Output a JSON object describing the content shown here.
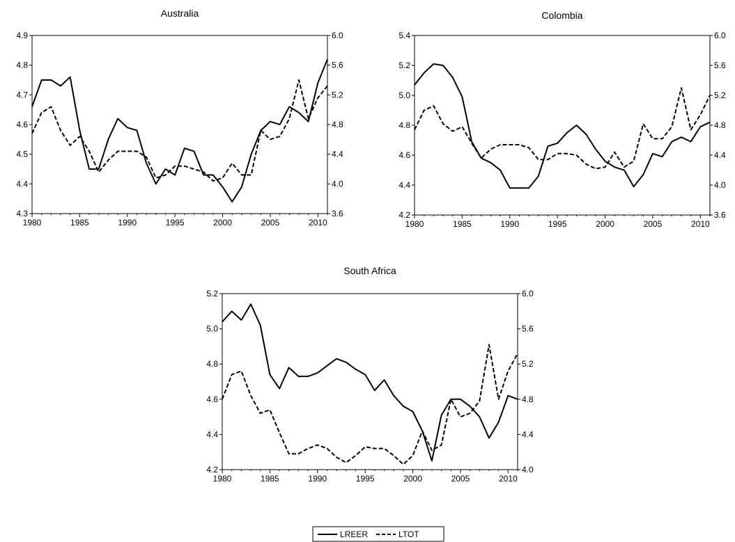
{
  "legend": {
    "items": [
      {
        "label": "LREER",
        "style": "solid"
      },
      {
        "label": "LTOT",
        "style": "dashed"
      }
    ]
  },
  "chart_data": [
    {
      "type": "line",
      "title": "Australia",
      "x": [
        1980,
        1981,
        1982,
        1983,
        1984,
        1985,
        1986,
        1987,
        1988,
        1989,
        1990,
        1991,
        1992,
        1993,
        1994,
        1995,
        1996,
        1997,
        1998,
        1999,
        2000,
        2001,
        2002,
        2003,
        2004,
        2005,
        2006,
        2007,
        2008,
        2009,
        2010,
        2011
      ],
      "xlim": [
        1980,
        2011
      ],
      "xticks": [
        1980,
        1985,
        1990,
        1995,
        2000,
        2005,
        2010
      ],
      "ylim_left": [
        4.3,
        4.9
      ],
      "yticks_left": [
        "4.3",
        "4.4",
        "4.5",
        "4.6",
        "4.7",
        "4.8",
        "4.9"
      ],
      "ylim_right": [
        3.6,
        6.0
      ],
      "yticks_right": [
        "3.6",
        "4.0",
        "4.4",
        "4.8",
        "5.2",
        "5.6",
        "6.0"
      ],
      "series": [
        {
          "name": "LREER",
          "axis": "left",
          "style": "solid",
          "values": [
            4.66,
            4.75,
            4.75,
            4.73,
            4.76,
            4.58,
            4.45,
            4.45,
            4.55,
            4.62,
            4.59,
            4.58,
            4.47,
            4.4,
            4.45,
            4.43,
            4.52,
            4.51,
            4.43,
            4.43,
            4.39,
            4.34,
            4.39,
            4.5,
            4.58,
            4.61,
            4.6,
            4.66,
            4.64,
            4.61,
            4.74,
            4.82
          ]
        },
        {
          "name": "LTOT",
          "axis": "left",
          "style": "dashed",
          "values": [
            4.57,
            4.64,
            4.66,
            4.58,
            4.53,
            4.56,
            4.51,
            4.44,
            4.48,
            4.51,
            4.51,
            4.51,
            4.49,
            4.42,
            4.43,
            4.46,
            4.46,
            4.45,
            4.44,
            4.41,
            4.42,
            4.47,
            4.43,
            4.43,
            4.58,
            4.55,
            4.56,
            4.62,
            4.75,
            4.62,
            4.69,
            4.73
          ]
        }
      ]
    },
    {
      "type": "line",
      "title": "Colombia",
      "x": [
        1980,
        1981,
        1982,
        1983,
        1984,
        1985,
        1986,
        1987,
        1988,
        1989,
        1990,
        1991,
        1992,
        1993,
        1994,
        1995,
        1996,
        1997,
        1998,
        1999,
        2000,
        2001,
        2002,
        2003,
        2004,
        2005,
        2006,
        2007,
        2008,
        2009,
        2010,
        2011
      ],
      "xlim": [
        1980,
        2011
      ],
      "xticks": [
        1980,
        1985,
        1990,
        1995,
        2000,
        2005,
        2010
      ],
      "ylim_left": [
        4.2,
        5.4
      ],
      "yticks_left": [
        "4.2",
        "4.4",
        "4.6",
        "4.8",
        "5.0",
        "5.2",
        "5.4"
      ],
      "ylim_right": [
        3.6,
        6.0
      ],
      "yticks_right": [
        "3.6",
        "4.0",
        "4.4",
        "4.8",
        "5.2",
        "5.6",
        "6.0"
      ],
      "series": [
        {
          "name": "LREER",
          "axis": "left",
          "style": "solid",
          "values": [
            5.07,
            5.15,
            5.21,
            5.2,
            5.12,
            4.99,
            4.69,
            4.58,
            4.55,
            4.5,
            4.38,
            4.38,
            4.38,
            4.46,
            4.66,
            4.68,
            4.75,
            4.8,
            4.74,
            4.64,
            4.56,
            4.52,
            4.5,
            4.39,
            4.47,
            4.61,
            4.59,
            4.69,
            4.72,
            4.69,
            4.79,
            4.82
          ]
        },
        {
          "name": "LTOT",
          "axis": "left",
          "style": "dashed",
          "values": [
            4.77,
            4.9,
            4.93,
            4.81,
            4.76,
            4.79,
            4.68,
            4.58,
            4.64,
            4.67,
            4.67,
            4.67,
            4.65,
            4.57,
            4.57,
            4.61,
            4.61,
            4.6,
            4.54,
            4.51,
            4.52,
            4.62,
            4.52,
            4.56,
            4.81,
            4.71,
            4.71,
            4.79,
            5.05,
            4.77,
            4.87,
            5.0
          ]
        }
      ]
    },
    {
      "type": "line",
      "title": "South Africa",
      "x": [
        1980,
        1981,
        1982,
        1983,
        1984,
        1985,
        1986,
        1987,
        1988,
        1989,
        1990,
        1991,
        1992,
        1993,
        1994,
        1995,
        1996,
        1997,
        1998,
        1999,
        2000,
        2001,
        2002,
        2003,
        2004,
        2005,
        2006,
        2007,
        2008,
        2009,
        2010,
        2011
      ],
      "xlim": [
        1980,
        2011
      ],
      "xticks": [
        1980,
        1985,
        1990,
        1995,
        2000,
        2005,
        2010
      ],
      "ylim_left": [
        4.2,
        5.2
      ],
      "yticks_left": [
        "4.2",
        "4.4",
        "4.6",
        "4.8",
        "5.0",
        "5.2"
      ],
      "ylim_right": [
        4.0,
        6.0
      ],
      "yticks_right": [
        "4.0",
        "4.4",
        "4.8",
        "5.2",
        "5.6",
        "6.0"
      ],
      "series": [
        {
          "name": "LREER",
          "axis": "left",
          "style": "solid",
          "values": [
            5.04,
            5.1,
            5.05,
            5.14,
            5.02,
            4.74,
            4.66,
            4.78,
            4.73,
            4.73,
            4.75,
            4.79,
            4.83,
            4.81,
            4.77,
            4.74,
            4.65,
            4.71,
            4.62,
            4.56,
            4.53,
            4.42,
            4.25,
            4.51,
            4.6,
            4.6,
            4.56,
            4.5,
            4.38,
            4.47,
            4.62,
            4.6
          ]
        },
        {
          "name": "LTOT",
          "axis": "left",
          "style": "dashed",
          "values": [
            4.6,
            4.74,
            4.76,
            4.62,
            4.52,
            4.54,
            4.41,
            4.29,
            4.29,
            4.32,
            4.34,
            4.32,
            4.27,
            4.24,
            4.28,
            4.33,
            4.32,
            4.32,
            4.28,
            4.23,
            4.28,
            4.42,
            4.31,
            4.34,
            4.6,
            4.5,
            4.52,
            4.59,
            4.91,
            4.6,
            4.76,
            4.86
          ]
        }
      ]
    }
  ]
}
